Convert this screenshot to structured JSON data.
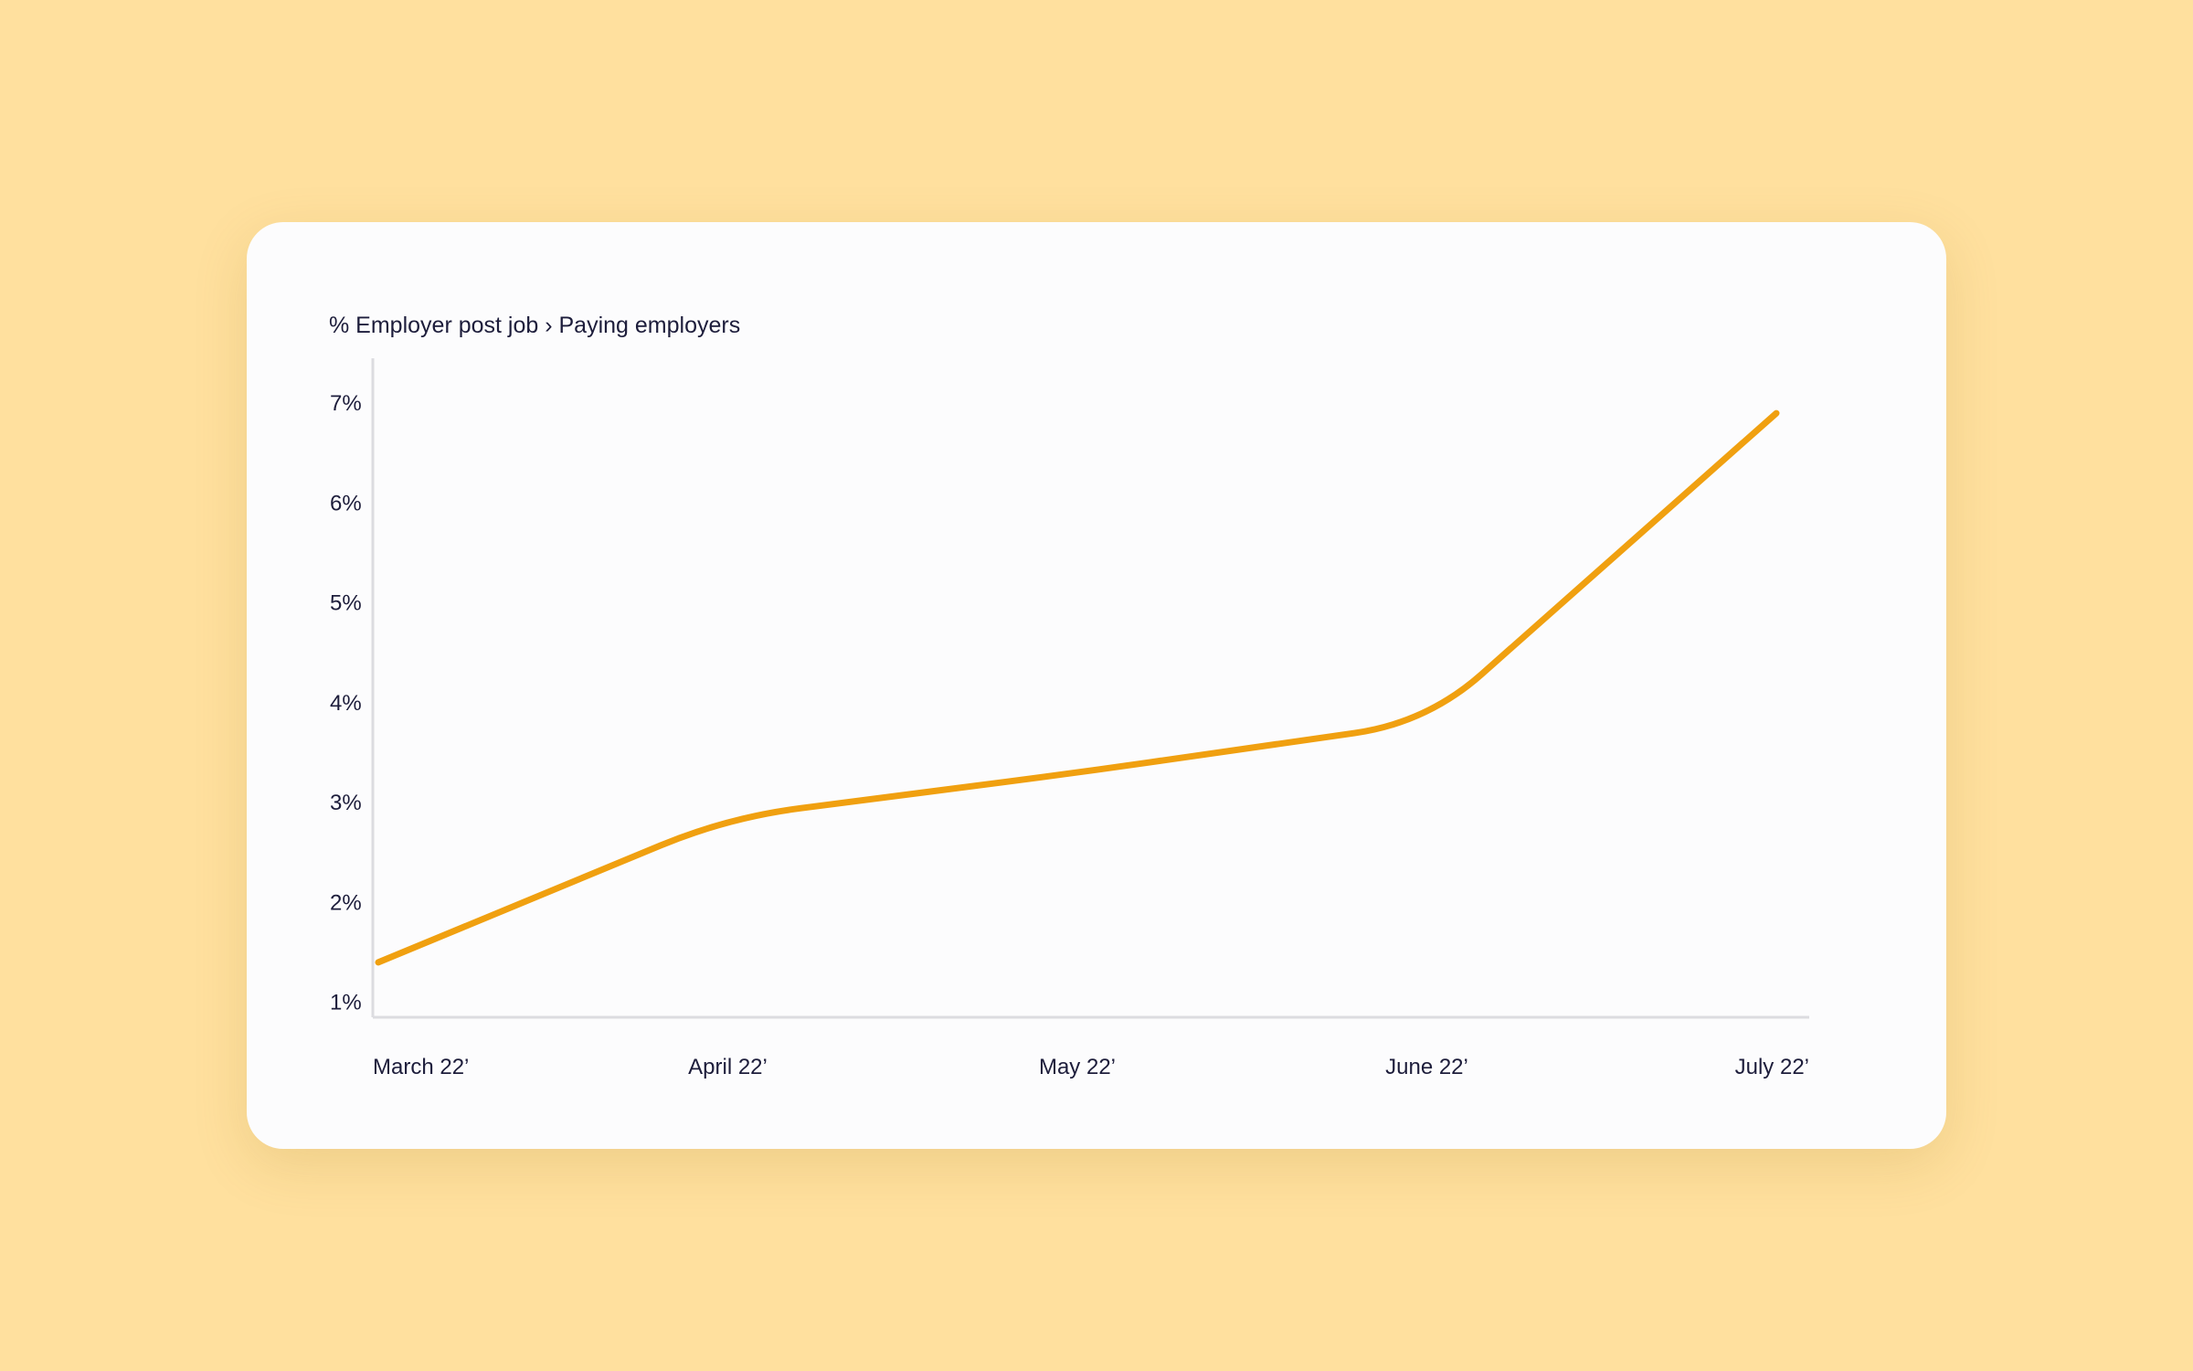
{
  "theme": {
    "background": "#FFE09E",
    "card": "#FCFCFD",
    "line": "#F0A010",
    "axis": "#DCDCE0",
    "text": "#1D1D3B"
  },
  "chart_data": {
    "type": "line",
    "title": "% Employer post job › Paying employers",
    "xlabel": "",
    "ylabel": "",
    "categories": [
      "March 22’",
      "April 22’",
      "May 22’",
      "June 22’",
      "July 22’"
    ],
    "y_ticks": [
      "1%",
      "2%",
      "3%",
      "4%",
      "5%",
      "6%",
      "7%"
    ],
    "y_tick_values": [
      1,
      2,
      3,
      4,
      5,
      6,
      7
    ],
    "ylim": [
      0.85,
      7.45
    ],
    "grid": false,
    "legend": "none",
    "series": [
      {
        "values": [
          1.4,
          2.85,
          3.3,
          3.8,
          6.9
        ]
      }
    ]
  }
}
